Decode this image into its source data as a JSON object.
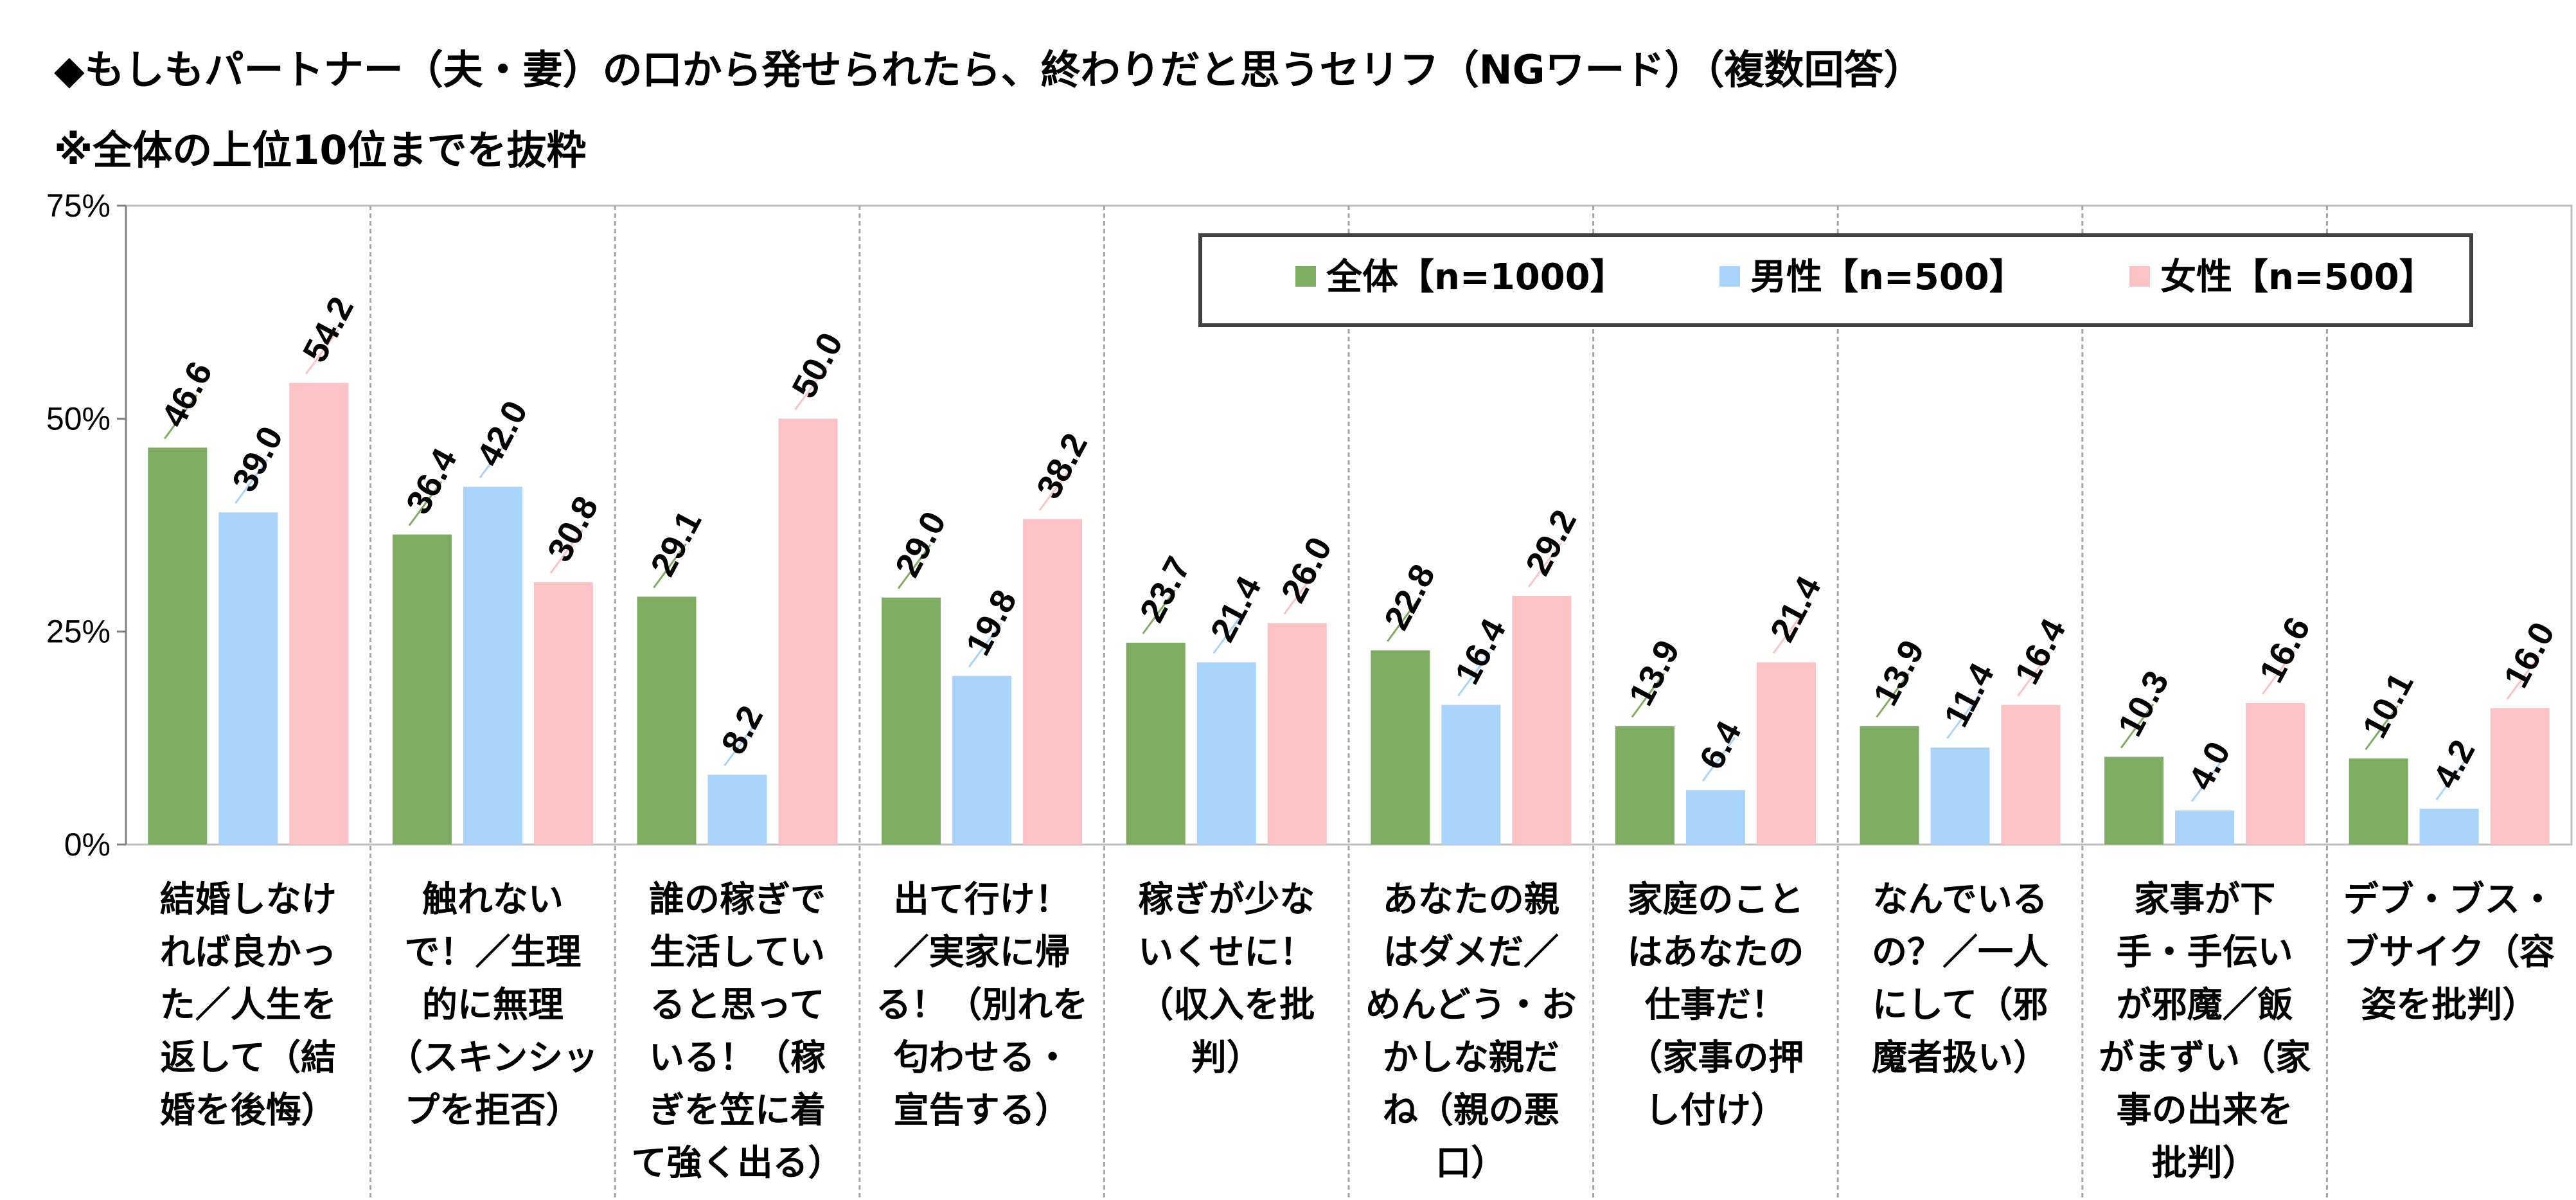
{
  "chart_data": {
    "type": "bar",
    "title_lines": [
      "◆もしもパートナー（夫・妻）の口から発せられたら、終わりだと思うセリフ（NGワード）（複数回答）",
      "※全体の上位10位までを抜粋"
    ],
    "y_ticks": [
      "0%",
      "25%",
      "50%",
      "75%"
    ],
    "ylim": [
      0,
      75
    ],
    "grid": false,
    "legend_position": "top-right",
    "categories": [
      [
        "結婚しなけ",
        "れば良かっ",
        "た／人生を",
        "返して（結",
        "婚を後悔）"
      ],
      [
        "触れない",
        "で！／生理",
        "的に無理",
        "（スキンシッ",
        "プを拒否）"
      ],
      [
        "誰の稼ぎで",
        "生活してい",
        "ると思って",
        "いる！（稼",
        "ぎを笠に着",
        "て強く出る）"
      ],
      [
        "出て行け！",
        "／実家に帰",
        "る！（別れを",
        "匂わせる・",
        "宣告する）"
      ],
      [
        "稼ぎが少な",
        "いくせに！",
        "（収入を批",
        "判）"
      ],
      [
        "あなたの親",
        "はダメだ／",
        "めんどう・お",
        "かしな親だ",
        "ね（親の悪",
        "口）"
      ],
      [
        "家庭のこと",
        "はあなたの",
        "仕事だ！",
        "（家事の押",
        "し付け）"
      ],
      [
        "なんでいる",
        "の？／一人",
        "にして（邪",
        "魔者扱い）"
      ],
      [
        "家事が下",
        "手・手伝い",
        "が邪魔／飯",
        "がまずい（家",
        "事の出来を",
        "批判）"
      ],
      [
        "デブ・ブス・",
        "ブサイク（容",
        "姿を批判）"
      ]
    ],
    "series": [
      {
        "name": "全体【n=1000】",
        "color": "#7fac63",
        "values": [
          46.6,
          36.4,
          29.1,
          29.0,
          23.7,
          22.8,
          13.9,
          13.9,
          10.3,
          10.1
        ],
        "labels": [
          "46.6",
          "36.4",
          "29.1",
          "29.0",
          "23.7",
          "22.8",
          "13.9",
          "13.9",
          "10.3",
          "10.1"
        ]
      },
      {
        "name": "男性【n=500】",
        "color": "#a9d4fb",
        "values": [
          39.0,
          42.0,
          8.2,
          19.8,
          21.4,
          16.4,
          6.4,
          11.4,
          4.0,
          4.2
        ],
        "labels": [
          "39.0",
          "42.0",
          "8.2",
          "19.8",
          "21.4",
          "16.4",
          "6.4",
          "11.4",
          "4.0",
          "4.2"
        ]
      },
      {
        "name": "女性【n=500】",
        "color": "#fbc3c5",
        "values": [
          54.2,
          30.8,
          50.0,
          38.2,
          26.0,
          29.2,
          21.4,
          16.4,
          16.6,
          16.0
        ],
        "labels": [
          "54.2",
          "30.8",
          "50.0",
          "38.2",
          "26.0",
          "29.2",
          "21.4",
          "16.4",
          "16.6",
          "16.0"
        ]
      }
    ]
  }
}
